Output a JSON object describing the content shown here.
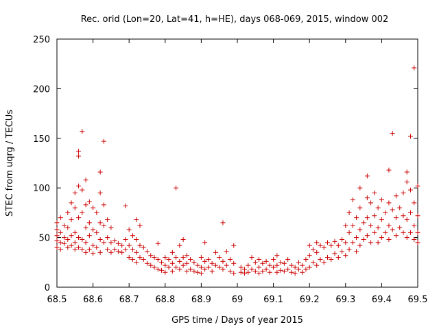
{
  "chart_data": {
    "type": "scatter",
    "title": "Rec. orid (Lon=20, Lat=41, h=HE), days 068-069, 2015, window 002",
    "xlabel": "GPS time / Days of year 2015",
    "ylabel": "STEC from uqrg / TECUs",
    "xlim": [
      68.5,
      69.5
    ],
    "ylim": [
      0,
      250
    ],
    "xticks": [
      "68.5",
      "68.6",
      "68.7",
      "68.8",
      "68.9",
      "69",
      "69.1",
      "69.2",
      "69.3",
      "69.4",
      "69.5"
    ],
    "yticks": [
      "0",
      "50",
      "100",
      "150",
      "200",
      "250"
    ],
    "marker": "+",
    "color": "#cc0000",
    "grid": false,
    "series": [
      {
        "points": [
          [
            68.5,
            65
          ],
          [
            68.5,
            58
          ],
          [
            68.5,
            52
          ],
          [
            68.5,
            47
          ],
          [
            68.5,
            40
          ],
          [
            68.51,
            70
          ],
          [
            68.51,
            55
          ],
          [
            68.51,
            45
          ],
          [
            68.51,
            38
          ],
          [
            68.52,
            62
          ],
          [
            68.52,
            50
          ],
          [
            68.52,
            44
          ],
          [
            68.53,
            75
          ],
          [
            68.53,
            60
          ],
          [
            68.53,
            48
          ],
          [
            68.53,
            40
          ],
          [
            68.54,
            85
          ],
          [
            68.54,
            68
          ],
          [
            68.54,
            52
          ],
          [
            68.54,
            42
          ],
          [
            68.55,
            95
          ],
          [
            68.55,
            80
          ],
          [
            68.55,
            55
          ],
          [
            68.55,
            45
          ],
          [
            68.55,
            38
          ],
          [
            68.56,
            102
          ],
          [
            68.56,
            70
          ],
          [
            68.56,
            50
          ],
          [
            68.56,
            40
          ],
          [
            68.56,
            137
          ],
          [
            68.56,
            132
          ],
          [
            68.57,
            157
          ],
          [
            68.57,
            98
          ],
          [
            68.57,
            75
          ],
          [
            68.57,
            48
          ],
          [
            68.57,
            38
          ],
          [
            68.58,
            108
          ],
          [
            68.58,
            83
          ],
          [
            68.58,
            60
          ],
          [
            68.58,
            45
          ],
          [
            68.58,
            35
          ],
          [
            68.59,
            86
          ],
          [
            68.59,
            65
          ],
          [
            68.59,
            52
          ],
          [
            68.59,
            38
          ],
          [
            68.6,
            80
          ],
          [
            68.6,
            58
          ],
          [
            68.6,
            42
          ],
          [
            68.6,
            34
          ],
          [
            68.61,
            75
          ],
          [
            68.61,
            55
          ],
          [
            68.61,
            40
          ],
          [
            68.62,
            116
          ],
          [
            68.62,
            95
          ],
          [
            68.62,
            65
          ],
          [
            68.62,
            48
          ],
          [
            68.62,
            35
          ],
          [
            68.63,
            147
          ],
          [
            68.63,
            83
          ],
          [
            68.63,
            62
          ],
          [
            68.63,
            45
          ],
          [
            68.64,
            68
          ],
          [
            68.64,
            50
          ],
          [
            68.64,
            38
          ],
          [
            68.65,
            60
          ],
          [
            68.65,
            45
          ],
          [
            68.65,
            35
          ],
          [
            68.66,
            47
          ],
          [
            68.66,
            38
          ],
          [
            68.67,
            44
          ],
          [
            68.67,
            36
          ],
          [
            68.68,
            42
          ],
          [
            68.68,
            35
          ],
          [
            68.69,
            82
          ],
          [
            68.69,
            48
          ],
          [
            68.69,
            38
          ],
          [
            68.7,
            58
          ],
          [
            68.7,
            42
          ],
          [
            68.7,
            30
          ],
          [
            68.71,
            52
          ],
          [
            68.71,
            38
          ],
          [
            68.71,
            28
          ],
          [
            68.72,
            68
          ],
          [
            68.72,
            48
          ],
          [
            68.72,
            35
          ],
          [
            68.72,
            25
          ],
          [
            68.73,
            62
          ],
          [
            68.73,
            42
          ],
          [
            68.73,
            30
          ],
          [
            68.74,
            40
          ],
          [
            68.74,
            28
          ],
          [
            68.75,
            36
          ],
          [
            68.75,
            24
          ],
          [
            68.76,
            32
          ],
          [
            68.76,
            22
          ],
          [
            68.77,
            30
          ],
          [
            68.77,
            20
          ],
          [
            68.78,
            44
          ],
          [
            68.78,
            28
          ],
          [
            68.78,
            18
          ],
          [
            68.79,
            25
          ],
          [
            68.79,
            17
          ],
          [
            68.8,
            30
          ],
          [
            68.8,
            22
          ],
          [
            68.8,
            15
          ],
          [
            68.81,
            28
          ],
          [
            68.81,
            20
          ],
          [
            68.82,
            35
          ],
          [
            68.82,
            24
          ],
          [
            68.82,
            16
          ],
          [
            68.83,
            100
          ],
          [
            68.83,
            30
          ],
          [
            68.83,
            20
          ],
          [
            68.84,
            42
          ],
          [
            68.84,
            26
          ],
          [
            68.84,
            18
          ],
          [
            68.85,
            48
          ],
          [
            68.85,
            30
          ],
          [
            68.85,
            22
          ],
          [
            68.86,
            32
          ],
          [
            68.86,
            24
          ],
          [
            68.86,
            16
          ],
          [
            68.87,
            28
          ],
          [
            68.87,
            18
          ],
          [
            68.88,
            25
          ],
          [
            68.88,
            16
          ],
          [
            68.89,
            22
          ],
          [
            68.89,
            15
          ],
          [
            68.9,
            30
          ],
          [
            68.9,
            20
          ],
          [
            68.9,
            14
          ],
          [
            68.91,
            45
          ],
          [
            68.91,
            26
          ],
          [
            68.91,
            18
          ],
          [
            68.92,
            28
          ],
          [
            68.92,
            20
          ],
          [
            68.93,
            24
          ],
          [
            68.93,
            16
          ],
          [
            68.94,
            35
          ],
          [
            68.94,
            22
          ],
          [
            68.95,
            30
          ],
          [
            68.95,
            20
          ],
          [
            68.96,
            65
          ],
          [
            68.96,
            26
          ],
          [
            68.96,
            18
          ],
          [
            68.97,
            36
          ],
          [
            68.97,
            22
          ],
          [
            68.98,
            28
          ],
          [
            68.98,
            16
          ],
          [
            68.99,
            42
          ],
          [
            68.99,
            24
          ],
          [
            68.99,
            14
          ],
          [
            69.01,
            20
          ],
          [
            69.01,
            15
          ],
          [
            69.02,
            18
          ],
          [
            69.02,
            14
          ],
          [
            69.03,
            22
          ],
          [
            69.03,
            15
          ],
          [
            69.04,
            30
          ],
          [
            69.04,
            18
          ],
          [
            69.05,
            25
          ],
          [
            69.05,
            16
          ],
          [
            69.06,
            28
          ],
          [
            69.06,
            20
          ],
          [
            69.06,
            14
          ],
          [
            69.07,
            24
          ],
          [
            69.07,
            16
          ],
          [
            69.08,
            26
          ],
          [
            69.08,
            18
          ],
          [
            69.09,
            22
          ],
          [
            69.09,
            15
          ],
          [
            69.1,
            28
          ],
          [
            69.1,
            20
          ],
          [
            69.11,
            32
          ],
          [
            69.11,
            22
          ],
          [
            69.11,
            15
          ],
          [
            69.12,
            25
          ],
          [
            69.12,
            17
          ],
          [
            69.13,
            24
          ],
          [
            69.13,
            16
          ],
          [
            69.14,
            28
          ],
          [
            69.14,
            18
          ],
          [
            69.15,
            22
          ],
          [
            69.15,
            15
          ],
          [
            69.16,
            20
          ],
          [
            69.16,
            14
          ],
          [
            69.17,
            25
          ],
          [
            69.17,
            18
          ],
          [
            69.18,
            22
          ],
          [
            69.18,
            15
          ],
          [
            69.19,
            28
          ],
          [
            69.19,
            18
          ],
          [
            69.2,
            42
          ],
          [
            69.2,
            32
          ],
          [
            69.2,
            20
          ],
          [
            69.21,
            38
          ],
          [
            69.21,
            25
          ],
          [
            69.22,
            45
          ],
          [
            69.22,
            35
          ],
          [
            69.22,
            22
          ],
          [
            69.23,
            42
          ],
          [
            69.23,
            28
          ],
          [
            69.24,
            40
          ],
          [
            69.24,
            25
          ],
          [
            69.25,
            45
          ],
          [
            69.25,
            30
          ],
          [
            69.26,
            42
          ],
          [
            69.26,
            28
          ],
          [
            69.27,
            46
          ],
          [
            69.27,
            34
          ],
          [
            69.28,
            42
          ],
          [
            69.28,
            30
          ],
          [
            69.29,
            48
          ],
          [
            69.29,
            36
          ],
          [
            69.3,
            62
          ],
          [
            69.3,
            45
          ],
          [
            69.3,
            32
          ],
          [
            69.31,
            75
          ],
          [
            69.31,
            55
          ],
          [
            69.31,
            38
          ],
          [
            69.32,
            88
          ],
          [
            69.32,
            62
          ],
          [
            69.32,
            45
          ],
          [
            69.33,
            70
          ],
          [
            69.33,
            50
          ],
          [
            69.33,
            36
          ],
          [
            69.34,
            100
          ],
          [
            69.34,
            80
          ],
          [
            69.34,
            58
          ],
          [
            69.34,
            42
          ],
          [
            69.35,
            65
          ],
          [
            69.35,
            48
          ],
          [
            69.36,
            112
          ],
          [
            69.36,
            90
          ],
          [
            69.36,
            70
          ],
          [
            69.36,
            52
          ],
          [
            69.37,
            85
          ],
          [
            69.37,
            62
          ],
          [
            69.37,
            45
          ],
          [
            69.38,
            95
          ],
          [
            69.38,
            72
          ],
          [
            69.38,
            55
          ],
          [
            69.39,
            80
          ],
          [
            69.39,
            60
          ],
          [
            69.39,
            45
          ],
          [
            69.4,
            88
          ],
          [
            69.4,
            68
          ],
          [
            69.4,
            50
          ],
          [
            69.41,
            75
          ],
          [
            69.41,
            55
          ],
          [
            69.42,
            118
          ],
          [
            69.42,
            85
          ],
          [
            69.42,
            62
          ],
          [
            69.42,
            48
          ],
          [
            69.43,
            155
          ],
          [
            69.43,
            78
          ],
          [
            69.43,
            58
          ],
          [
            69.44,
            92
          ],
          [
            69.44,
            70
          ],
          [
            69.44,
            52
          ],
          [
            69.45,
            80
          ],
          [
            69.45,
            60
          ],
          [
            69.46,
            95
          ],
          [
            69.46,
            72
          ],
          [
            69.46,
            55
          ],
          [
            69.47,
            116
          ],
          [
            69.47,
            106
          ],
          [
            69.47,
            68
          ],
          [
            69.47,
            50
          ],
          [
            69.48,
            152
          ],
          [
            69.48,
            98
          ],
          [
            69.48,
            75
          ],
          [
            69.48,
            55
          ],
          [
            69.49,
            221
          ],
          [
            69.49,
            85
          ],
          [
            69.49,
            62
          ],
          [
            69.49,
            48
          ],
          [
            69.5,
            102
          ],
          [
            69.5,
            72
          ],
          [
            69.5,
            55
          ],
          [
            69.5,
            45
          ]
        ]
      }
    ]
  }
}
